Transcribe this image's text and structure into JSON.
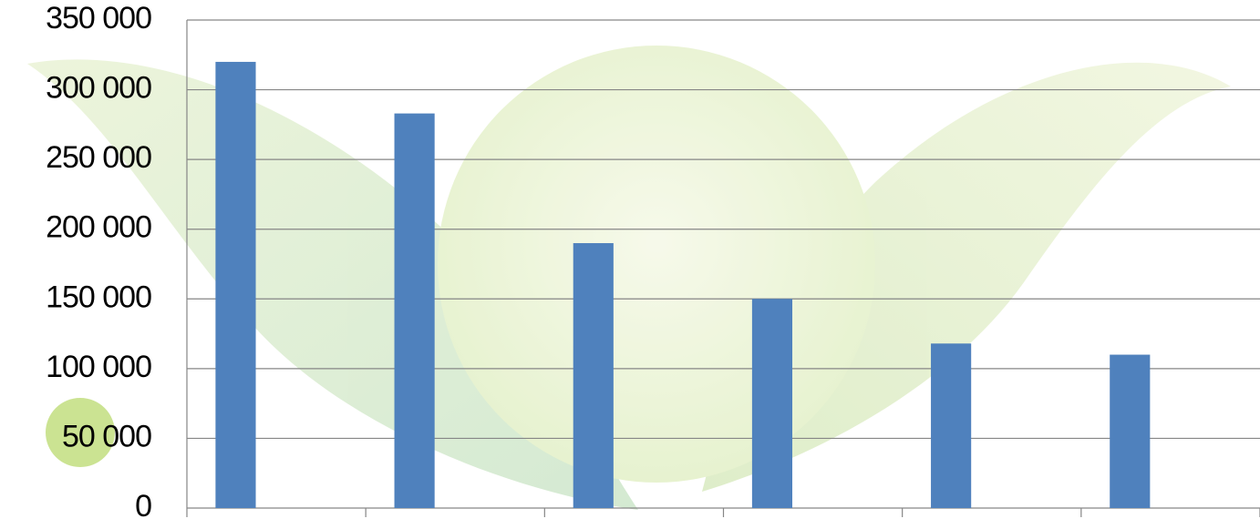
{
  "chart_data": {
    "type": "bar",
    "categories": [
      null,
      null,
      null,
      null,
      null,
      null
    ],
    "values": [
      320000,
      283000,
      190000,
      150000,
      118000,
      110000
    ],
    "color": "#4f81bd",
    "ylim": [
      0,
      350000
    ],
    "yticks": [
      0,
      {
        "value": 50000,
        "label": "50 000"
      },
      {
        "value": 100000,
        "label": "100 000"
      },
      {
        "value": 150000,
        "label": "150 000"
      },
      {
        "value": 200000,
        "label": "200 000"
      },
      {
        "value": 250000,
        "label": "250 000"
      },
      {
        "value": 300000,
        "label": "300 000"
      },
      {
        "value": 350000,
        "label": "350 000"
      }
    ],
    "grid": true
  }
}
